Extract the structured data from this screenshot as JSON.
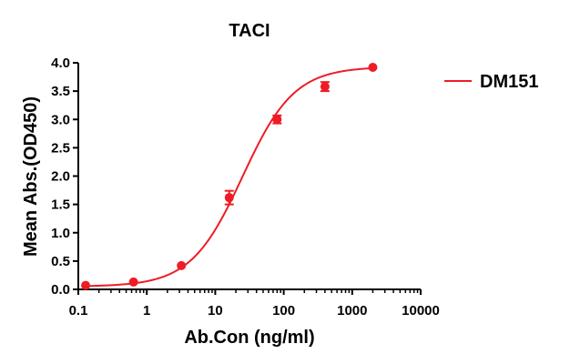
{
  "chart_data": {
    "type": "scatter",
    "title": "TACI",
    "xlabel": "Ab.Con (ng/ml)",
    "ylabel": "Mean Abs.(OD450)",
    "x_scale": "log",
    "xlim": [
      0.1,
      10000
    ],
    "ylim": [
      0.0,
      4.0
    ],
    "x_ticks": [
      0.1,
      1,
      10,
      100,
      1000,
      10000
    ],
    "x_tick_labels": [
      "0.1",
      "1",
      "10",
      "100",
      "1000",
      "10000"
    ],
    "y_ticks": [
      0.0,
      0.5,
      1.0,
      1.5,
      2.0,
      2.5,
      3.0,
      3.5,
      4.0
    ],
    "y_tick_labels": [
      "0.0",
      "0.5",
      "1.0",
      "1.5",
      "2.0",
      "2.5",
      "3.0",
      "3.5",
      "4.0"
    ],
    "grid": false,
    "legend_position": "top-right",
    "series": [
      {
        "name": "DM151",
        "color": "#ee1c25",
        "marker": "circle",
        "line": "fitted-curve",
        "points": [
          {
            "x": 0.128,
            "y": 0.07,
            "err": 0.0
          },
          {
            "x": 0.64,
            "y": 0.13,
            "err": 0.0
          },
          {
            "x": 3.2,
            "y": 0.42,
            "err": 0.0
          },
          {
            "x": 16,
            "y": 1.62,
            "err": 0.12
          },
          {
            "x": 80,
            "y": 3.0,
            "err": 0.07
          },
          {
            "x": 400,
            "y": 3.58,
            "err": 0.08
          },
          {
            "x": 2000,
            "y": 3.92,
            "err": 0.0
          }
        ],
        "curve_params": {
          "bottom": 0.05,
          "top": 3.93,
          "ec50": 25,
          "hill": 1.15
        }
      }
    ]
  }
}
